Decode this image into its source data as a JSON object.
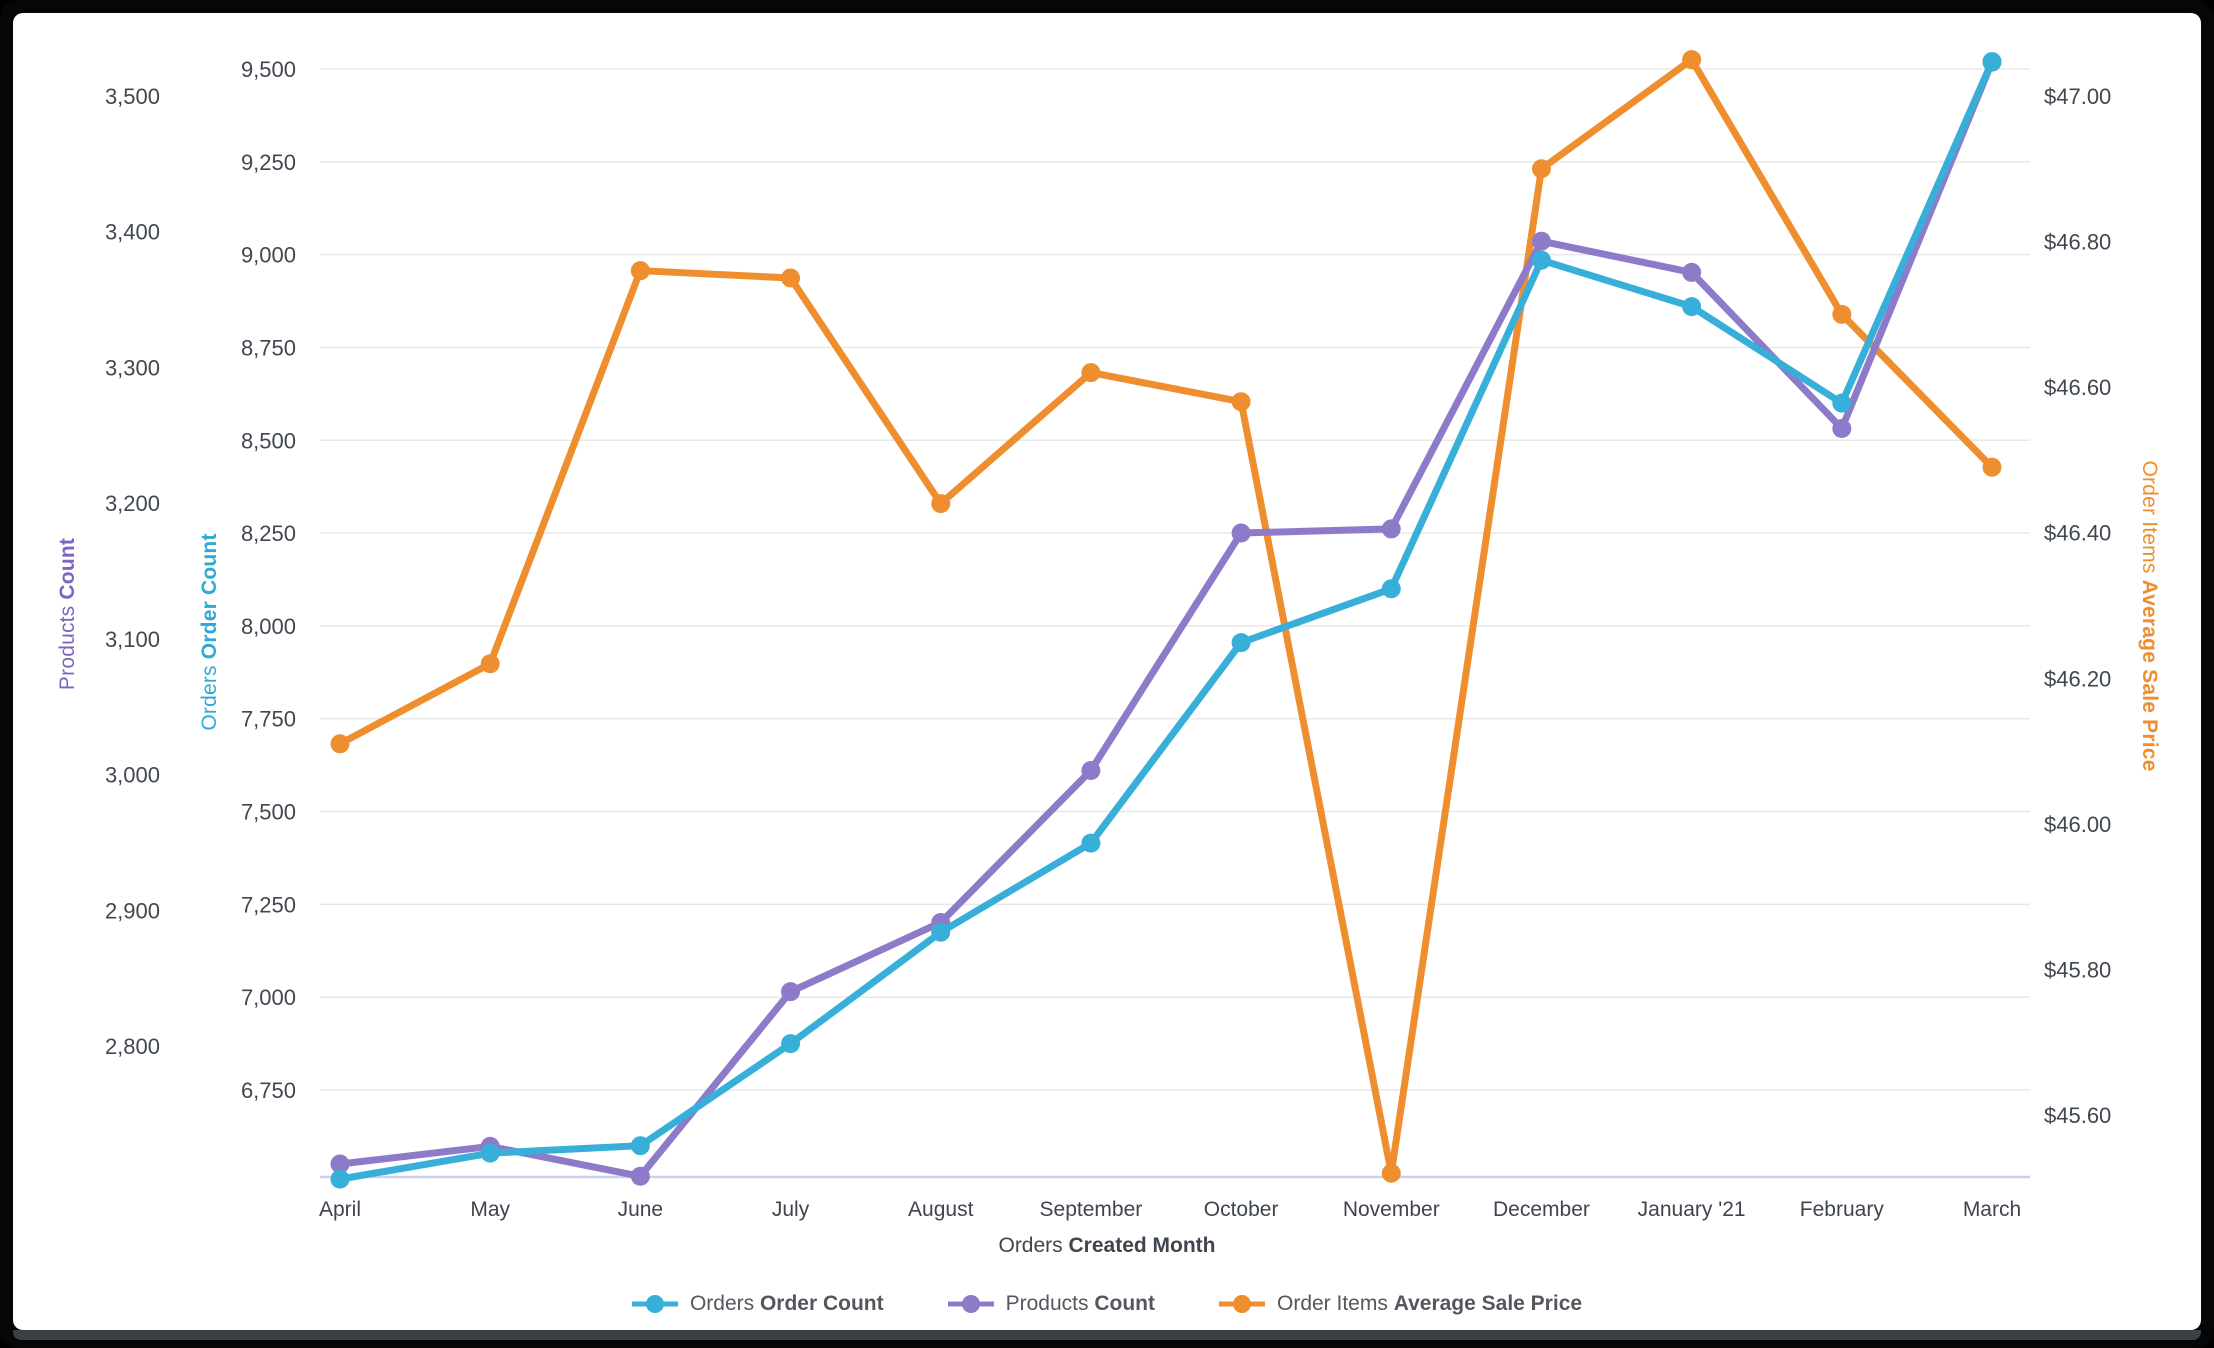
{
  "chart_data": {
    "type": "line",
    "x_axis_title": {
      "normal": "Orders ",
      "bold": "Created Month"
    },
    "x_categories": [
      "April",
      "May",
      "June",
      "July",
      "August",
      "September",
      "October",
      "November",
      "December",
      "January '21",
      "February",
      "March"
    ],
    "grid": true,
    "legend_position": "bottom",
    "series": [
      {
        "id": "orders_order_count",
        "name_normal": "Orders ",
        "name_bold": "Order Count",
        "color": "#38afd9",
        "axis": "orders",
        "values": [
          6510,
          6580,
          6600,
          6875,
          7175,
          7415,
          7955,
          8100,
          8985,
          8860,
          8600,
          9520
        ]
      },
      {
        "id": "products_count",
        "name_normal": "Products ",
        "name_bold": "Count",
        "color": "#8d7bc9",
        "axis": "products",
        "values": [
          2713,
          2726,
          2704,
          2840,
          2891,
          3003,
          3178,
          3181,
          3393,
          3370,
          3255,
          3525
        ]
      },
      {
        "id": "order_items_average_sale_price",
        "name_normal": "Order Items ",
        "name_bold": "Average Sale Price",
        "color": "#ef8e2e",
        "axis": "price",
        "values": [
          46.11,
          46.22,
          46.76,
          46.75,
          46.44,
          46.62,
          46.58,
          45.52,
          46.9,
          47.05,
          46.7,
          46.49
        ]
      }
    ],
    "axes": {
      "products": {
        "title_normal": "Products ",
        "title_bold": "Count",
        "color": "#7d64c3",
        "side": "left-outer",
        "tick_labels": [
          "3,500",
          "3,400",
          "3,300",
          "3,200",
          "3,100",
          "3,000",
          "2,900",
          "2,800"
        ],
        "tick_values": [
          3500,
          3400,
          3300,
          3200,
          3100,
          3000,
          2900,
          2800
        ],
        "range": [
          2700,
          3545
        ]
      },
      "orders": {
        "title_normal": "Orders ",
        "title_bold": "Order Count",
        "color": "#2fa9d6",
        "side": "left-inner",
        "tick_labels": [
          "9,500",
          "9,250",
          "9,000",
          "8,750",
          "8,500",
          "8,250",
          "8,000",
          "7,750",
          "7,500",
          "7,250",
          "7,000",
          "6,750"
        ],
        "tick_values": [
          9500,
          9250,
          9000,
          8750,
          8500,
          8250,
          8000,
          7750,
          7500,
          7250,
          7000,
          6750
        ],
        "range": [
          6500,
          9565
        ]
      },
      "price": {
        "title_normal": "Order Items ",
        "title_bold": "Average Sale Price",
        "color": "#ef8e2e",
        "side": "right",
        "tick_labels": [
          "$47.00",
          "$46.80",
          "$46.60",
          "$46.40",
          "$46.20",
          "$46.00",
          "$45.80",
          "$45.60"
        ],
        "tick_values": [
          47.0,
          46.8,
          46.6,
          46.4,
          46.2,
          46.0,
          45.8,
          45.6
        ],
        "range": [
          45.51,
          47.1
        ]
      }
    },
    "colors": {
      "gridline": "#e8e8e8",
      "baseline": "#c9d2ee",
      "tick_text": "#414750",
      "legend_text": "#54575d"
    }
  }
}
